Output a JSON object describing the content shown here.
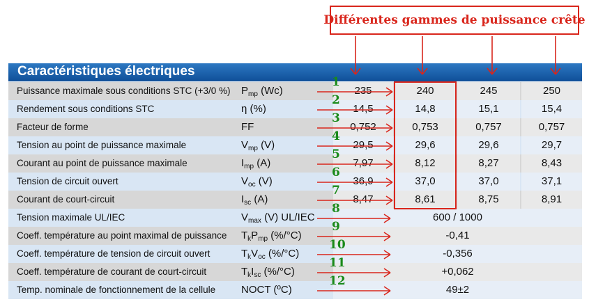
{
  "annotation": {
    "title": "Différentes gammes de puissance crête"
  },
  "table": {
    "title": "Caractéristiques électriques",
    "rows": [
      {
        "label": "Puissance maximale sous conditions STC (+3/0 %)",
        "sym": "P",
        "sub": "mp",
        "unit": " (Wc)",
        "values": [
          "235",
          "240",
          "245",
          "250"
        ],
        "num": "1"
      },
      {
        "label": "Rendement sous conditions STC",
        "sym": "η",
        "sub": "",
        "unit": " (%)",
        "values": [
          "14,5",
          "14,8",
          "15,1",
          "15,4"
        ],
        "num": "2"
      },
      {
        "label": "Facteur de forme",
        "sym": "FF",
        "sub": "",
        "unit": "",
        "values": [
          "0,752",
          "0,753",
          "0,757",
          "0,757"
        ],
        "num": "3"
      },
      {
        "label": "Tension au point de puissance maximale",
        "sym": "V",
        "sub": "mp",
        "unit": " (V)",
        "values": [
          "29,5",
          "29,6",
          "29,6",
          "29,7"
        ],
        "num": "4"
      },
      {
        "label": "Courant au point de puissance maximale",
        "sym": "I",
        "sub": "mp",
        "unit": " (A)",
        "values": [
          "7,97",
          "8,12",
          "8,27",
          "8,43"
        ],
        "num": "5"
      },
      {
        "label": "Tension de circuit ouvert",
        "sym": "V",
        "sub": "oc",
        "unit": " (V)",
        "values": [
          "36,9",
          "37,0",
          "37,0",
          "37,1"
        ],
        "num": "6"
      },
      {
        "label": "Courant de court-circuit",
        "sym": "I",
        "sub": "sc",
        "unit": " (A)",
        "values": [
          "8,47",
          "8,61",
          "8,75",
          "8,91"
        ],
        "num": "7"
      },
      {
        "label": "Tension maximale UL/IEC",
        "sym": "V",
        "sub": "max",
        "unit": " (V) UL/IEC",
        "merged": "600 / 1000",
        "num": "8"
      },
      {
        "label": "Coeff. température au point maximal de puissance",
        "sym": "T",
        "sub": "k",
        "unit": "P",
        "sub2": "mp",
        "unit2": " (%/°C)",
        "merged": "-0,41",
        "num": "9"
      },
      {
        "label": "Coeff. température de tension de circuit ouvert",
        "sym": "T",
        "sub": "k",
        "unit": "V",
        "sub2": "oc",
        "unit2": " (%/°C)",
        "merged": "-0,356",
        "num": "10"
      },
      {
        "label": "Coeff. température de courant de court-circuit",
        "sym": "T",
        "sub": "k",
        "unit": "I",
        "sub2": "sc",
        "unit2": " (%/°C)",
        "merged": "+0,062",
        "num": "11"
      },
      {
        "label": "Temp. nominale de fonctionnement de la cellule",
        "sym": "NOCT",
        "sub": "",
        "unit": " (ºC)",
        "merged": "49±2",
        "num": "12"
      }
    ]
  }
}
